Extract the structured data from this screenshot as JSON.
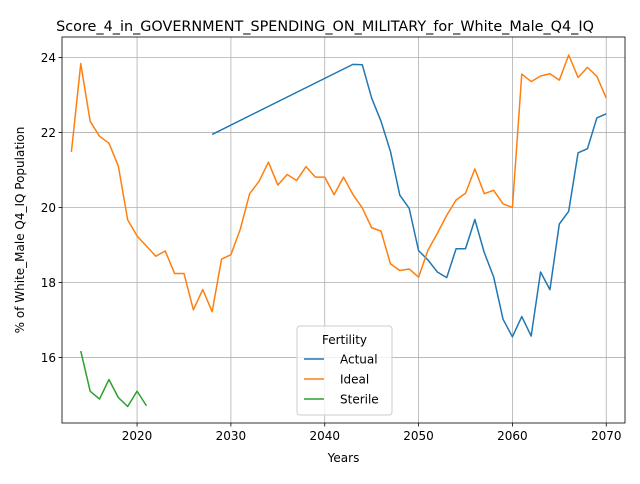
{
  "chart_data": {
    "type": "line",
    "title": "Score_4_in_GOVERNMENT_SPENDING_ON_MILITARY_for_White_Male_Q4_IQ",
    "xlabel": "Years",
    "ylabel": "% of White_Male Q4_IQ Population",
    "xlim": [
      2012,
      2072
    ],
    "ylim": [
      14.25,
      24.55
    ],
    "x_ticks": [
      2020,
      2030,
      2040,
      2050,
      2060,
      2070
    ],
    "y_ticks": [
      16,
      18,
      20,
      22,
      24
    ],
    "grid": true,
    "legend": {
      "title": "Fertility",
      "placement": "lower-center"
    },
    "series": [
      {
        "name": "Actual",
        "color": "#1f77b4",
        "x": [
          2028,
          2043,
          2044,
          2045,
          2046,
          2047,
          2048,
          2049,
          2050,
          2051,
          2052,
          2053,
          2054,
          2055,
          2056,
          2057,
          2058,
          2059,
          2060,
          2061,
          2062,
          2063,
          2064,
          2065,
          2066,
          2067,
          2068,
          2069,
          2070
        ],
        "y": [
          21.95,
          23.82,
          23.81,
          22.92,
          22.3,
          21.5,
          20.33,
          19.98,
          18.85,
          18.6,
          18.28,
          18.13,
          18.9,
          18.9,
          19.68,
          18.8,
          18.15,
          17.02,
          16.55,
          17.09,
          16.57,
          18.28,
          17.81,
          19.56,
          19.9,
          21.46,
          21.57,
          22.39,
          22.5
        ]
      },
      {
        "name": "Ideal",
        "color": "#ff7f0e",
        "x": [
          2013,
          2014,
          2015,
          2016,
          2017,
          2018,
          2019,
          2020,
          2021,
          2022,
          2023,
          2024,
          2025,
          2026,
          2027,
          2028,
          2029,
          2030,
          2031,
          2032,
          2033,
          2034,
          2035,
          2036,
          2037,
          2038,
          2039,
          2040,
          2041,
          2042,
          2043,
          2044,
          2045,
          2046,
          2047,
          2048,
          2049,
          2050,
          2051,
          2052,
          2053,
          2054,
          2055,
          2056,
          2057,
          2058,
          2059,
          2060,
          2061,
          2062,
          2063,
          2064,
          2065,
          2066,
          2067,
          2068,
          2069,
          2070
        ],
        "y": [
          21.48,
          23.84,
          22.3,
          21.9,
          21.72,
          21.11,
          19.67,
          19.24,
          18.97,
          18.7,
          18.84,
          18.24,
          18.24,
          17.27,
          17.81,
          17.22,
          18.62,
          18.74,
          19.42,
          20.37,
          20.7,
          21.21,
          20.6,
          20.88,
          20.72,
          21.09,
          20.81,
          20.81,
          20.34,
          20.81,
          20.35,
          19.99,
          19.46,
          19.37,
          18.5,
          18.32,
          18.36,
          18.14,
          18.86,
          19.31,
          19.79,
          20.2,
          20.38,
          21.03,
          20.37,
          20.46,
          20.1,
          20.0,
          23.56,
          23.36,
          23.51,
          23.57,
          23.4,
          24.07,
          23.47,
          23.74,
          23.5,
          22.92
        ]
      },
      {
        "name": "Sterile",
        "color": "#2ca02c",
        "x": [
          2014,
          2015,
          2016,
          2017,
          2018,
          2019,
          2020,
          2021
        ],
        "y": [
          16.17,
          15.1,
          14.89,
          15.41,
          14.93,
          14.69,
          15.1,
          14.71
        ]
      }
    ]
  }
}
